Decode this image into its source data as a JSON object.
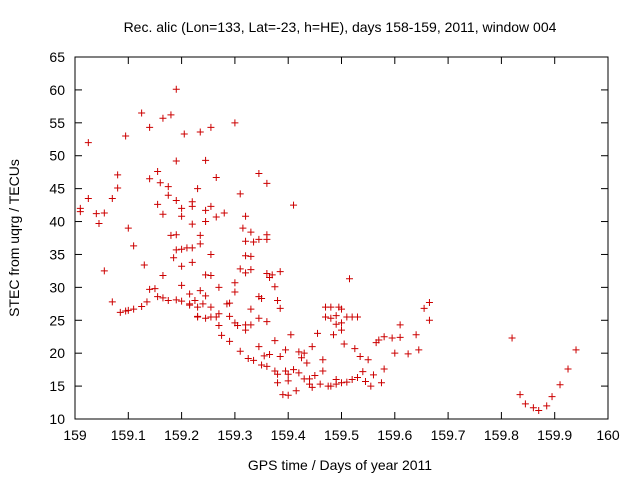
{
  "chart_data": {
    "type": "scatter",
    "title": "Rec. alic (Lon=133, Lat=-23, h=HE), days 158-159, 2011, window 004",
    "xlabel": "GPS time / Days of year 2011",
    "ylabel": "STEC from uqrg / TECUs",
    "xlim": [
      159,
      160
    ],
    "ylim": [
      10,
      65
    ],
    "xticks": [
      159,
      159.1,
      159.2,
      159.3,
      159.4,
      159.5,
      159.6,
      159.7,
      159.8,
      159.9,
      160
    ],
    "xtick_labels": [
      "159",
      "159.1",
      "159.2",
      "159.3",
      "159.4",
      "159.5",
      "159.6",
      "159.7",
      "159.8",
      "159.9",
      "160"
    ],
    "yticks": [
      10,
      15,
      20,
      25,
      30,
      35,
      40,
      45,
      50,
      55,
      60,
      65
    ],
    "ytick_labels": [
      "10",
      "15",
      "20",
      "25",
      "30",
      "35",
      "40",
      "45",
      "50",
      "55",
      "60",
      "65"
    ],
    "marker": "+",
    "grid": false,
    "legend": "none",
    "color": "#cc0000",
    "points": [
      [
        159.01,
        41.5
      ],
      [
        159.01,
        42.0
      ],
      [
        159.025,
        43.5
      ],
      [
        159.025,
        52.0
      ],
      [
        159.04,
        41.2
      ],
      [
        159.045,
        39.7
      ],
      [
        159.055,
        41.3
      ],
      [
        159.055,
        32.5
      ],
      [
        159.07,
        27.8
      ],
      [
        159.07,
        43.5
      ],
      [
        159.08,
        45.1
      ],
      [
        159.08,
        47.1
      ],
      [
        159.085,
        26.2
      ],
      [
        159.095,
        53.0
      ],
      [
        159.095,
        26.4
      ],
      [
        159.1,
        39.0
      ],
      [
        159.1,
        26.5
      ],
      [
        159.11,
        36.3
      ],
      [
        159.11,
        26.7
      ],
      [
        159.125,
        56.5
      ],
      [
        159.125,
        27.1
      ],
      [
        159.13,
        33.4
      ],
      [
        159.135,
        27.8
      ],
      [
        159.14,
        54.3
      ],
      [
        159.14,
        46.5
      ],
      [
        159.14,
        29.7
      ],
      [
        159.15,
        29.8
      ],
      [
        159.155,
        47.6
      ],
      [
        159.155,
        42.6
      ],
      [
        159.155,
        28.6
      ],
      [
        159.16,
        45.9
      ],
      [
        159.165,
        41.1
      ],
      [
        159.165,
        31.8
      ],
      [
        159.165,
        55.7
      ],
      [
        159.165,
        28.4
      ],
      [
        159.175,
        45.3
      ],
      [
        159.175,
        44.0
      ],
      [
        159.175,
        28.0
      ],
      [
        159.18,
        56.2
      ],
      [
        159.18,
        37.9
      ],
      [
        159.185,
        34.5
      ],
      [
        159.19,
        60.1
      ],
      [
        159.19,
        49.2
      ],
      [
        159.19,
        43.2
      ],
      [
        159.19,
        38.0
      ],
      [
        159.19,
        35.7
      ],
      [
        159.19,
        28.1
      ],
      [
        159.2,
        42.0
      ],
      [
        159.2,
        40.8
      ],
      [
        159.2,
        35.8
      ],
      [
        159.2,
        33.2
      ],
      [
        159.2,
        30.3
      ],
      [
        159.2,
        27.9
      ],
      [
        159.205,
        53.3
      ],
      [
        159.21,
        36.0
      ],
      [
        159.215,
        29.0
      ],
      [
        159.215,
        27.5
      ],
      [
        159.215,
        27.3
      ],
      [
        159.22,
        43.0
      ],
      [
        159.22,
        42.3
      ],
      [
        159.22,
        39.6
      ],
      [
        159.22,
        36.0
      ],
      [
        159.22,
        33.8
      ],
      [
        159.225,
        28.0
      ],
      [
        159.23,
        45.0
      ],
      [
        159.23,
        27.0
      ],
      [
        159.23,
        25.5
      ],
      [
        159.23,
        25.6
      ],
      [
        159.235,
        53.6
      ],
      [
        159.235,
        37.9
      ],
      [
        159.235,
        36.6
      ],
      [
        159.235,
        29.5
      ],
      [
        159.24,
        27.5
      ],
      [
        159.245,
        49.3
      ],
      [
        159.245,
        41.7
      ],
      [
        159.245,
        40.0
      ],
      [
        159.245,
        31.9
      ],
      [
        159.245,
        28.7
      ],
      [
        159.245,
        25.3
      ],
      [
        159.255,
        54.3
      ],
      [
        159.255,
        42.3
      ],
      [
        159.255,
        35.0
      ],
      [
        159.255,
        31.8
      ],
      [
        159.255,
        27.0
      ],
      [
        159.255,
        25.5
      ],
      [
        159.265,
        46.7
      ],
      [
        159.265,
        40.7
      ],
      [
        159.265,
        25.5
      ],
      [
        159.27,
        30.0
      ],
      [
        159.27,
        26.0
      ],
      [
        159.27,
        24.2
      ],
      [
        159.275,
        22.7
      ],
      [
        159.28,
        41.3
      ],
      [
        159.285,
        27.5
      ],
      [
        159.29,
        27.6
      ],
      [
        159.29,
        25.6
      ],
      [
        159.29,
        21.8
      ],
      [
        159.3,
        55.0
      ],
      [
        159.3,
        30.7
      ],
      [
        159.3,
        29.3
      ],
      [
        159.3,
        24.6
      ],
      [
        159.305,
        24.2
      ],
      [
        159.31,
        44.2
      ],
      [
        159.31,
        32.8
      ],
      [
        159.31,
        20.3
      ],
      [
        159.315,
        39.0
      ],
      [
        159.32,
        40.8
      ],
      [
        159.32,
        37.0
      ],
      [
        159.32,
        34.8
      ],
      [
        159.32,
        32.2
      ],
      [
        159.32,
        24.3
      ],
      [
        159.32,
        23.5
      ],
      [
        159.325,
        19.2
      ],
      [
        159.33,
        38.4
      ],
      [
        159.33,
        34.7
      ],
      [
        159.33,
        32.7
      ],
      [
        159.33,
        26.7
      ],
      [
        159.33,
        24.3
      ],
      [
        159.335,
        36.9
      ],
      [
        159.335,
        18.9
      ],
      [
        159.345,
        47.3
      ],
      [
        159.345,
        37.3
      ],
      [
        159.345,
        28.6
      ],
      [
        159.345,
        25.3
      ],
      [
        159.345,
        21.0
      ],
      [
        159.35,
        28.3
      ],
      [
        159.35,
        18.2
      ],
      [
        159.355,
        19.6
      ],
      [
        159.36,
        45.8
      ],
      [
        159.36,
        38.0
      ],
      [
        159.36,
        37.3
      ],
      [
        159.36,
        32.1
      ],
      [
        159.36,
        24.8
      ],
      [
        159.36,
        18.0
      ],
      [
        159.365,
        31.5
      ],
      [
        159.365,
        19.8
      ],
      [
        159.37,
        31.9
      ],
      [
        159.375,
        30.1
      ],
      [
        159.375,
        21.9
      ],
      [
        159.375,
        17.3
      ],
      [
        159.38,
        28.0
      ],
      [
        159.38,
        16.8
      ],
      [
        159.38,
        15.5
      ],
      [
        159.385,
        32.4
      ],
      [
        159.385,
        26.8
      ],
      [
        159.385,
        19.5
      ],
      [
        159.39,
        13.7
      ],
      [
        159.395,
        17.3
      ],
      [
        159.395,
        20.5
      ],
      [
        159.4,
        16.8
      ],
      [
        159.4,
        15.8
      ],
      [
        159.4,
        13.6
      ],
      [
        159.405,
        22.8
      ],
      [
        159.41,
        42.5
      ],
      [
        159.41,
        17.5
      ],
      [
        159.415,
        14.3
      ],
      [
        159.42,
        20.2
      ],
      [
        159.42,
        17.0
      ],
      [
        159.425,
        19.3
      ],
      [
        159.43,
        20.0
      ],
      [
        159.43,
        16.1
      ],
      [
        159.435,
        18.5
      ],
      [
        159.44,
        16.1
      ],
      [
        159.44,
        15.3
      ],
      [
        159.445,
        21.0
      ],
      [
        159.445,
        14.8
      ],
      [
        159.45,
        16.6
      ],
      [
        159.455,
        23.0
      ],
      [
        159.46,
        15.3
      ],
      [
        159.465,
        19.0
      ],
      [
        159.465,
        17.3
      ],
      [
        159.47,
        27.0
      ],
      [
        159.47,
        25.5
      ],
      [
        159.475,
        15.0
      ],
      [
        159.48,
        27.0
      ],
      [
        159.48,
        25.3
      ],
      [
        159.48,
        15.0
      ],
      [
        159.485,
        22.8
      ],
      [
        159.49,
        25.7
      ],
      [
        159.49,
        24.4
      ],
      [
        159.49,
        16.0
      ],
      [
        159.49,
        15.3
      ],
      [
        159.495,
        27.0
      ],
      [
        159.5,
        26.7
      ],
      [
        159.5,
        24.6
      ],
      [
        159.5,
        23.5
      ],
      [
        159.5,
        15.5
      ],
      [
        159.505,
        21.4
      ],
      [
        159.51,
        25.5
      ],
      [
        159.51,
        15.6
      ],
      [
        159.515,
        31.3
      ],
      [
        159.52,
        25.5
      ],
      [
        159.52,
        16.0
      ],
      [
        159.525,
        20.7
      ],
      [
        159.53,
        25.5
      ],
      [
        159.53,
        16.3
      ],
      [
        159.535,
        19.5
      ],
      [
        159.54,
        17.2
      ],
      [
        159.545,
        15.7
      ],
      [
        159.55,
        19.0
      ],
      [
        159.555,
        15.0
      ],
      [
        159.56,
        16.7
      ],
      [
        159.565,
        21.6
      ],
      [
        159.57,
        22.0
      ],
      [
        159.575,
        15.5
      ],
      [
        159.58,
        22.5
      ],
      [
        159.58,
        17.6
      ],
      [
        159.595,
        22.3
      ],
      [
        159.6,
        20.0
      ],
      [
        159.61,
        22.4
      ],
      [
        159.61,
        24.3
      ],
      [
        159.625,
        19.9
      ],
      [
        159.64,
        22.8
      ],
      [
        159.645,
        20.5
      ],
      [
        159.655,
        26.8
      ],
      [
        159.665,
        25.0
      ],
      [
        159.665,
        27.7
      ],
      [
        159.82,
        22.3
      ],
      [
        159.835,
        13.7
      ],
      [
        159.845,
        12.3
      ],
      [
        159.86,
        11.7
      ],
      [
        159.87,
        11.3
      ],
      [
        159.885,
        12.0
      ],
      [
        159.895,
        13.4
      ],
      [
        159.91,
        15.2
      ],
      [
        159.925,
        17.6
      ],
      [
        159.94,
        20.5
      ]
    ]
  }
}
